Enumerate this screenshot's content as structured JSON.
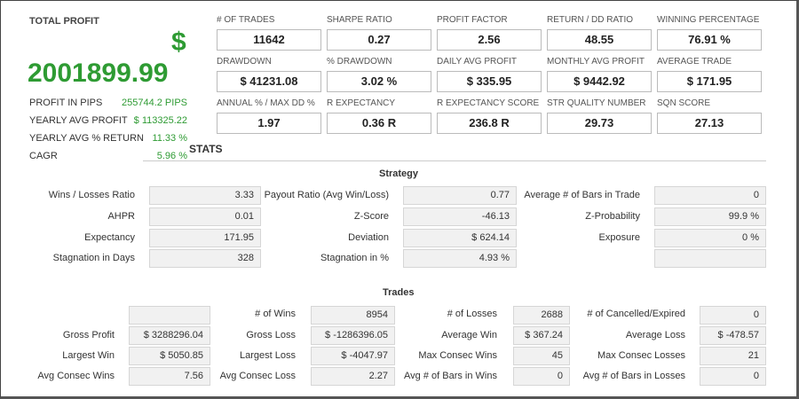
{
  "profit": {
    "label": "TOTAL PROFIT",
    "currency": "$",
    "value": "2001899.99",
    "rows": [
      {
        "label": "PROFIT IN PIPS",
        "value": "255744.2 PIPS"
      },
      {
        "label": "YEARLY AVG PROFIT",
        "value": "$ 113325.22"
      },
      {
        "label": "YEARLY AVG % RETURN",
        "value": "11.33 %"
      },
      {
        "label": "CAGR",
        "value": "5.96 %"
      }
    ]
  },
  "kpis": [
    {
      "label": "# OF TRADES",
      "value": "11642"
    },
    {
      "label": "SHARPE RATIO",
      "value": "0.27"
    },
    {
      "label": "PROFIT FACTOR",
      "value": "2.56"
    },
    {
      "label": "RETURN / DD RATIO",
      "value": "48.55"
    },
    {
      "label": "WINNING PERCENTAGE",
      "value": "76.91 %"
    },
    {
      "label": "DRAWDOWN",
      "value": "$ 41231.08"
    },
    {
      "label": "% DRAWDOWN",
      "value": "3.02 %"
    },
    {
      "label": "DAILY AVG PROFIT",
      "value": "$ 335.95"
    },
    {
      "label": "MONTHLY AVG PROFIT",
      "value": "$ 9442.92"
    },
    {
      "label": "AVERAGE TRADE",
      "value": "$ 171.95"
    },
    {
      "label": "ANNUAL % / MAX DD %",
      "value": "1.97"
    },
    {
      "label": "R EXPECTANCY",
      "value": "0.36 R"
    },
    {
      "label": "R EXPECTANCY SCORE",
      "value": "236.8 R"
    },
    {
      "label": "STR QUALITY NUMBER",
      "value": "29.73"
    },
    {
      "label": "SQN SCORE",
      "value": "27.13"
    }
  ],
  "stats_title": "STATS",
  "strategy": {
    "title": "Strategy",
    "rows": [
      [
        {
          "label": "Wins / Losses Ratio",
          "value": "3.33"
        },
        {
          "label": "Payout Ratio (Avg Win/Loss)",
          "value": "0.77"
        },
        {
          "label": "Average # of Bars in Trade",
          "value": "0"
        }
      ],
      [
        {
          "label": "AHPR",
          "value": "0.01"
        },
        {
          "label": "Z-Score",
          "value": "-46.13"
        },
        {
          "label": "Z-Probability",
          "value": "99.9 %"
        }
      ],
      [
        {
          "label": "Expectancy",
          "value": "171.95"
        },
        {
          "label": "Deviation",
          "value": "$ 624.14"
        },
        {
          "label": "Exposure",
          "value": "0 %"
        }
      ],
      [
        {
          "label": "Stagnation in Days",
          "value": "328"
        },
        {
          "label": "Stagnation in %",
          "value": "4.93 %"
        },
        {
          "label": "",
          "value": ""
        }
      ]
    ]
  },
  "trades": {
    "title": "Trades",
    "rows": [
      [
        {
          "label": "",
          "value": ""
        },
        {
          "label": "# of Wins",
          "value": "8954"
        },
        {
          "label": "# of Losses",
          "value": "2688"
        },
        {
          "label": "# of Cancelled/Expired",
          "value": "0"
        }
      ],
      [
        {
          "label": "Gross Profit",
          "value": "$ 3288296.04"
        },
        {
          "label": "Gross Loss",
          "value": "$ -1286396.05"
        },
        {
          "label": "Average Win",
          "value": "$ 367.24"
        },
        {
          "label": "Average Loss",
          "value": "$ -478.57"
        }
      ],
      [
        {
          "label": "Largest Win",
          "value": "$ 5050.85"
        },
        {
          "label": "Largest Loss",
          "value": "$ -4047.97"
        },
        {
          "label": "Max Consec Wins",
          "value": "45"
        },
        {
          "label": "Max Consec Losses",
          "value": "21"
        }
      ],
      [
        {
          "label": "Avg Consec Wins",
          "value": "7.56"
        },
        {
          "label": "Avg Consec Loss",
          "value": "2.27"
        },
        {
          "label": "Avg # of Bars in Wins",
          "value": "0"
        },
        {
          "label": "Avg # of Bars in Losses",
          "value": "0"
        }
      ]
    ]
  },
  "colors": {
    "accent_green": "#2e9b33",
    "box_bg": "#f1f1f1",
    "box_border": "#d6d6d6"
  }
}
